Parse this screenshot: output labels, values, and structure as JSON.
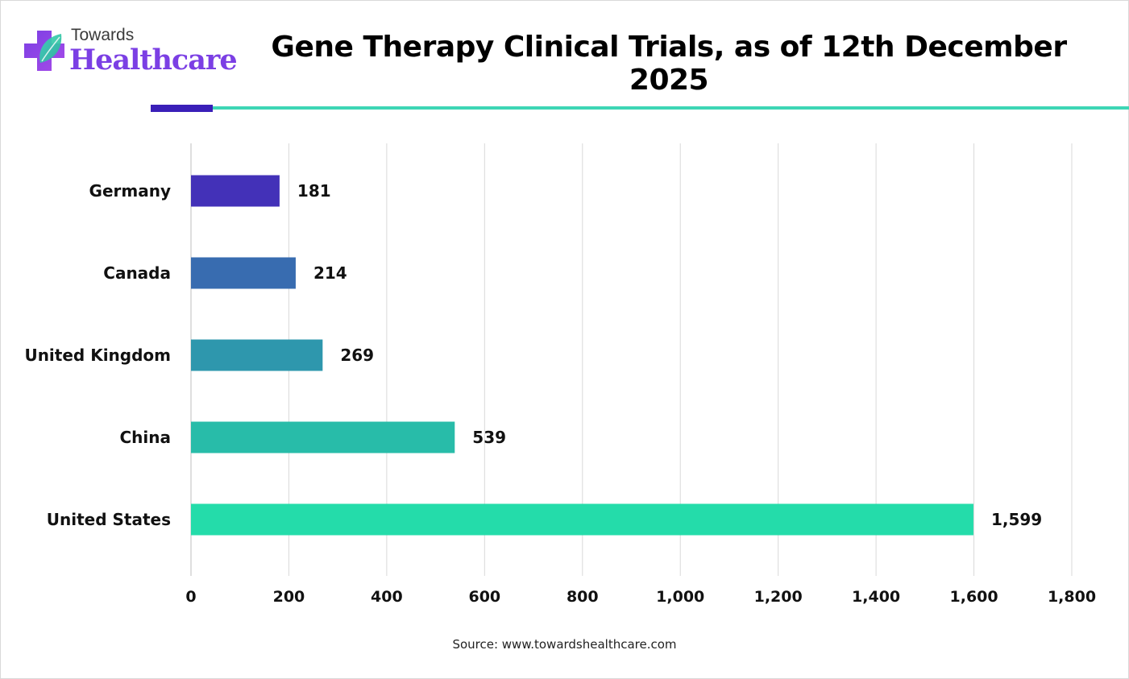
{
  "logo": {
    "line1": "Towards",
    "line2": "Healthcare"
  },
  "title": "Gene Therapy Clinical Trials, as of 12th December 2025",
  "source": "Source: www.towardshealthcare.com",
  "chart_data": {
    "type": "bar",
    "orientation": "horizontal",
    "title": "Gene Therapy Clinical Trials, as of 12th December 2025",
    "xlabel": "",
    "ylabel": "",
    "categories": [
      "Germany",
      "Canada",
      "United Kingdom",
      "China",
      "United States"
    ],
    "values": [
      181,
      214,
      269,
      539,
      1599
    ],
    "value_labels": [
      "181",
      "214",
      "269",
      "539",
      "1,599"
    ],
    "xlim": [
      0,
      1800
    ],
    "x_ticks": [
      0,
      200,
      400,
      600,
      800,
      1000,
      1200,
      1400,
      1600,
      1800
    ],
    "x_tick_labels": [
      "0",
      "200",
      "400",
      "600",
      "800",
      "1,000",
      "1,200",
      "1,400",
      "1,600",
      "1,800"
    ],
    "bar_colors": [
      "#4331b8",
      "#386cb0",
      "#2e97ad",
      "#28bca9",
      "#24dcaa"
    ],
    "grid": "vertical",
    "legend": "none"
  },
  "colors": {
    "brand_purple": "#7b3fe4",
    "rule_dark": "#3a1fb8",
    "rule_light": "#3dd6b5",
    "gridline": "#d9d9d9"
  }
}
